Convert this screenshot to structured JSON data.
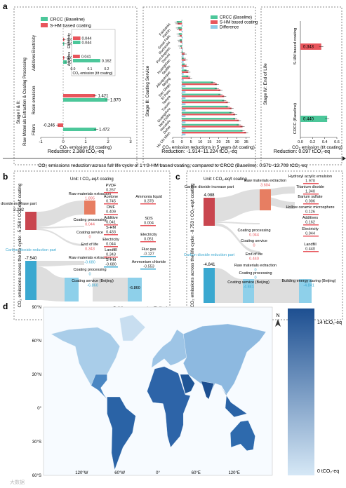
{
  "palette": {
    "crcc": "#4cc79a",
    "shm": "#e8555c",
    "diff": "#8fcae6",
    "increase": "#c9464f",
    "increase_light": "#e77e62",
    "reduction": "#3aa8d0",
    "flow": "#d8d8d8",
    "map_dark": "#1d4f91",
    "map_light": "#bcd8ee"
  },
  "panel_labels": [
    "a",
    "b",
    "c",
    "d"
  ],
  "stage_labels": {
    "s12": "Stage Ⅰ & Ⅱ:",
    "s12_sub": "Raw Materials Extraction & Coating Processing",
    "s3": "Stage Ⅲ: Coating Service",
    "s4": "Stage Ⅳ: End of Life"
  },
  "chart_data": [
    {
      "id": "a1",
      "type": "bar",
      "orientation": "horizontal",
      "xlabel": "CO₂ emission (t/t coating)",
      "xlim": [
        -1,
        3
      ],
      "xticks": [
        -1,
        0,
        1,
        2,
        3
      ],
      "legend": [
        "CRCC (Baseline)",
        "S-HM based coating"
      ],
      "legend_position": "top",
      "groups": [
        {
          "label": "Electricity",
          "crcc": 0.044,
          "shm": 0.044,
          "crcc_label": "0.044",
          "shm_label": "0.044"
        },
        {
          "label": "Additives",
          "crcc": 0.162,
          "shm": 0.041,
          "crcc_label": "0.162",
          "shm_label": "0.041"
        },
        {
          "label": "Resin emulsion",
          "crcc": 1.97,
          "shm": 1.421,
          "crcc_label": "1.970",
          "shm_label": "1.421"
        },
        {
          "label": "Fillers",
          "crcc": 1.472,
          "shm": -0.246,
          "crcc_label": "1.472",
          "shm_label": "-0.246"
        }
      ],
      "inset": {
        "xlabel": "CO₂ emission (t/t coating)",
        "xticks": [
          "0.0",
          "0.1",
          "0.2"
        ],
        "group_labels": [
          "Electricity",
          "Additives"
        ]
      },
      "reduction": "Reduction: 2.388 tCO₂-eq"
    },
    {
      "id": "a2",
      "type": "bar",
      "orientation": "horizontal",
      "xlabel": "CO₂ emission reductions in 5 years (t/t coating)",
      "xlim": [
        -5,
        37
      ],
      "xticks": [
        -5,
        0,
        5,
        10,
        15,
        20,
        25,
        30,
        35
      ],
      "legend": [
        "CRCC (Baseline)",
        "S-HM based coating",
        "Difference"
      ],
      "legend_position": "top-right",
      "categories": [
        "Fairbanks",
        "Harbin",
        "Great Falls",
        "Rochester",
        "Port Angeles",
        "Denver",
        "Huangshan",
        "Seattle",
        "Albuquerque",
        "Beijing",
        "San Diego",
        "El Paso",
        "Tampa",
        "Tucson",
        "Guangzhou",
        "New Delhi",
        "Honolulu",
        "Dubai",
        "Ho Chi Minh"
      ],
      "crcc": [
        -2.8,
        -2.1,
        -1.7,
        -1.2,
        -0.9,
        0.5,
        1.0,
        1.5,
        2.5,
        3.5,
        17,
        19,
        21,
        23,
        25,
        27,
        29,
        31,
        33
      ],
      "shm": [
        -2.3,
        -1.6,
        -1.2,
        -0.8,
        -0.4,
        1.5,
        2.0,
        2.5,
        3.5,
        4.5,
        19,
        21,
        23,
        25,
        27,
        29,
        31,
        33,
        35
      ],
      "diff": [
        0.5,
        0.5,
        0.5,
        0.4,
        0.5,
        1.0,
        1.0,
        1.0,
        1.0,
        1.0,
        2,
        2,
        2,
        2,
        2,
        2,
        2,
        2,
        2
      ],
      "reduction": "Reduction: -1.914~11.224 tCO₂-eq"
    },
    {
      "id": "a3",
      "type": "bar",
      "orientation": "vertical-categories",
      "xlabel": "CO₂ emission (t/t coating)",
      "xlim": [
        0,
        0.6
      ],
      "xticks": [
        "0.0",
        "0.2",
        "0.4",
        "0.6"
      ],
      "categories": [
        "S-HM based coating",
        "CRCC (Baseline)"
      ],
      "values": [
        0.343,
        0.44
      ],
      "value_labels": [
        "0.343",
        "0.440"
      ],
      "reduction": "Reduction: 0.097 tCO₂-eq"
    },
    {
      "id": "b",
      "type": "sankey",
      "unit": "Unit: t CO₂-eq/t coating",
      "ylabel": "CO₂ emissions across the life cycle: -5.258 t CO₂-eq/t coating",
      "increase": {
        "label": "Carbon dioxide increase part",
        "value": "2.282"
      },
      "reduction_part": {
        "label": "Carbon dioxide reduction part",
        "value": "-7.540"
      },
      "nodes": [
        {
          "label": "Raw materials extraction",
          "value": "1.895"
        },
        {
          "label": "Coating processing",
          "value": "0.044"
        },
        {
          "label": "Coating service",
          "value": "0"
        },
        {
          "label": "End of life",
          "value": "0.343"
        },
        {
          "label": "Raw materials extraction",
          "value": "-0.680"
        },
        {
          "label": "Coating processing",
          "value": "0"
        },
        {
          "label": "Coating service (Beijing)",
          "value": "-6.860"
        },
        {
          "label": "End of life",
          "value": "0"
        }
      ],
      "items": [
        {
          "label": "PVDF",
          "value": "0.267"
        },
        {
          "label": "Acetone",
          "value": "0.745"
        },
        {
          "label": "DMF",
          "value": "0.409"
        },
        {
          "label": "Additive",
          "value": "0.041"
        },
        {
          "label": "S-HM",
          "value": "0.433"
        },
        {
          "label": "Electricity",
          "value": "0.044"
        },
        {
          "label": "Landfill",
          "value": "0.343"
        },
        {
          "label": "S-HM",
          "value": "-0.680"
        }
      ],
      "right_items": [
        {
          "label": "Ammonia liquid",
          "value": "0.378"
        },
        {
          "label": "SDS",
          "value": "0.004"
        },
        {
          "label": "Electricity",
          "value": "0.051"
        },
        {
          "label": "Flux gas",
          "value": "-0.127"
        },
        {
          "label": "Ammonium chloride",
          "value": "-0.553"
        },
        {
          "label": "Building energy saving (Beijing)",
          "value": "-6.860"
        }
      ]
    },
    {
      "id": "c",
      "type": "sankey",
      "unit": "Unit: t CO₂-eq/t coating",
      "ylabel": "CO₂ emissions across the life cycle: -0.753 t CO₂-eq/t coating",
      "increase": {
        "label": "Carbon dioxide increase part",
        "value": "4.088"
      },
      "reduction_part": {
        "label": "Carbon dioxide reduction part",
        "value": "-4.841"
      },
      "nodes": [
        {
          "label": "Raw materials extraction",
          "value": "3.604"
        },
        {
          "label": "Coating processing",
          "value": "0.044"
        },
        {
          "label": "Coating service",
          "value": "0"
        },
        {
          "label": "End of life",
          "value": "0.440"
        },
        {
          "label": "Raw materials extraction",
          "value": "0"
        },
        {
          "label": "Coating processing",
          "value": "0"
        },
        {
          "label": "Coating service (Beijing)",
          "value": "-4.841"
        },
        {
          "label": "End of life",
          "value": "0"
        }
      ],
      "items": [
        {
          "label": "Hydroxyl acrylic emulsion",
          "value": "1.970"
        },
        {
          "label": "Titanium dioxide",
          "value": "1.340"
        },
        {
          "label": "Barium sulfate",
          "value": "0.006"
        },
        {
          "label": "Hollow ceramic microsphere",
          "value": "0.126"
        },
        {
          "label": "Additives",
          "value": "0.162"
        },
        {
          "label": "Electricity",
          "value": "0.044"
        },
        {
          "label": "Landfill",
          "value": "0.440"
        },
        {
          "label": "Building energy saving (Beijing)",
          "value": "-4.841"
        }
      ]
    },
    {
      "id": "d",
      "type": "heatmap",
      "lat_ticks": [
        "90°N",
        "60°N",
        "30°N",
        "0°",
        "30°S",
        "60°S"
      ],
      "lon_ticks": [
        "120°W",
        "60°W",
        "0°",
        "60°E",
        "120°E"
      ],
      "colorbar": {
        "max_label": "14 tCO₂-eq",
        "min_label": "0 tCO₂-eq"
      },
      "north_label": "N"
    }
  ],
  "summary": "CO₂ emissions reduction across full life cycle of 1 t S-HM based coating, compared to CRCC (Baseline): 0.571~13.709 tCO₂-eq",
  "watermark": "大数据"
}
